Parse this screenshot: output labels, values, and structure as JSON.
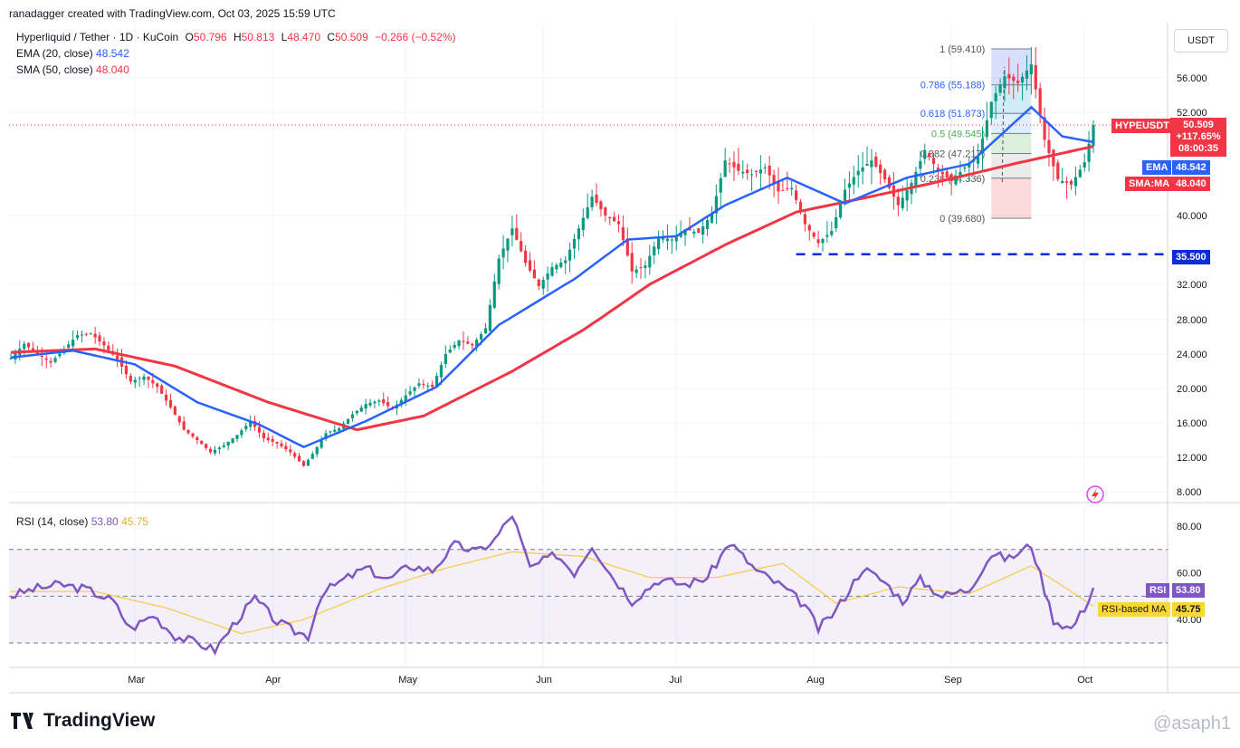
{
  "header": {
    "credit": "ranadagger created with TradingView.com, Oct 03, 2025 15:59 UTC",
    "pair": "Hyperliquid / Tether · 1D · KuCoin",
    "o_label": "O",
    "o": "50.796",
    "h_label": "H",
    "h": "50.813",
    "l_label": "L",
    "l": "48.470",
    "c_label": "C",
    "c": "50.509",
    "change": "−0.266 (−0.52%)",
    "ema_label": "EMA (20, close)",
    "ema_value": "48.542",
    "sma_label": "SMA (50, close)",
    "sma_value": "48.040",
    "rsi_label": "RSI (14, close)",
    "rsi_value": "53.80",
    "rsi_ma_value": "45.75"
  },
  "currency_button": "USDT",
  "price_box": {
    "symbol": "HYPEUSDT",
    "price": "50.509",
    "change": "+117.65%",
    "countdown": "08:00:35"
  },
  "axis_tags": {
    "ema": {
      "label": "EMA",
      "value": "48.542"
    },
    "sma": {
      "label": "SMA:MA",
      "value": "48.040"
    },
    "support": "35.500",
    "rsi": {
      "label": "RSI",
      "value": "53.80"
    },
    "rsi_ma": {
      "label": "RSI-based MA",
      "value": "45.75"
    }
  },
  "brand": "TradingView",
  "watermark": "@asaph1",
  "colors": {
    "up": "#089981",
    "down": "#f23645",
    "ema": "#2962ff",
    "sma": "#f23645",
    "rsi": "#7e57c2",
    "rsi_ma": "#f7c948",
    "support": "#0d2bd6"
  },
  "chart_data": [
    {
      "type": "candlestick",
      "y_ticks": [
        8,
        12,
        16,
        20,
        24,
        28,
        32,
        40,
        52,
        56
      ],
      "y_tick_labels": [
        "8.000",
        "12.000",
        "16.000",
        "20.000",
        "24.000",
        "28.000",
        "32.000",
        "40.000",
        "52.000",
        "56.000"
      ],
      "x_tick_labels": [
        "Mar",
        "Apr",
        "May",
        "Jun",
        "Jul",
        "Aug",
        "Sep",
        "Oct"
      ],
      "x_tick_dates": [
        "2025-03-01",
        "2025-04-01",
        "2025-05-01",
        "2025-06-01",
        "2025-07-01",
        "2025-08-01",
        "2025-09-01",
        "2025-10-01"
      ],
      "date_range": [
        "2025-02-01",
        "2025-10-03"
      ],
      "support_line": {
        "value": 35.5,
        "from": "2025-07-28",
        "to": "2025-10-03"
      },
      "fibonacci": {
        "from": "2025-09-10",
        "to": "2025-09-19",
        "levels": [
          {
            "ratio": "1",
            "value": 59.41,
            "label": "1 (59.410)"
          },
          {
            "ratio": "0.786",
            "value": 55.188,
            "label": "0.786 (55.188)"
          },
          {
            "ratio": "0.618",
            "value": 51.873,
            "label": "0.618 (51.873)"
          },
          {
            "ratio": "0.5",
            "value": 49.545,
            "label": "0.5 (49.545)"
          },
          {
            "ratio": "0.382",
            "value": 47.217,
            "label": "0.382 (47.217)"
          },
          {
            "ratio": "0.236",
            "value": 44.336,
            "label": "0.236 (44.336)"
          },
          {
            "ratio": "0",
            "value": 39.68,
            "label": "0 (39.680)"
          }
        ]
      },
      "closes": [
        {
          "d": "2025-02-01",
          "v": 23.5
        },
        {
          "d": "2025-02-04",
          "v": 25.2
        },
        {
          "d": "2025-02-07",
          "v": 24.0
        },
        {
          "d": "2025-02-10",
          "v": 23.0
        },
        {
          "d": "2025-02-13",
          "v": 24.6
        },
        {
          "d": "2025-02-16",
          "v": 26.2
        },
        {
          "d": "2025-02-19",
          "v": 26.4
        },
        {
          "d": "2025-02-22",
          "v": 25.0
        },
        {
          "d": "2025-02-25",
          "v": 23.4
        },
        {
          "d": "2025-02-28",
          "v": 20.8
        },
        {
          "d": "2025-03-03",
          "v": 21.4
        },
        {
          "d": "2025-03-06",
          "v": 20.2
        },
        {
          "d": "2025-03-09",
          "v": 17.8
        },
        {
          "d": "2025-03-12",
          "v": 15.2
        },
        {
          "d": "2025-03-15",
          "v": 14.0
        },
        {
          "d": "2025-03-18",
          "v": 12.6
        },
        {
          "d": "2025-03-21",
          "v": 13.4
        },
        {
          "d": "2025-03-24",
          "v": 14.6
        },
        {
          "d": "2025-03-27",
          "v": 16.2
        },
        {
          "d": "2025-03-30",
          "v": 14.2
        },
        {
          "d": "2025-04-02",
          "v": 13.6
        },
        {
          "d": "2025-04-05",
          "v": 12.6
        },
        {
          "d": "2025-04-08",
          "v": 11.0
        },
        {
          "d": "2025-04-10",
          "v": 12.4
        },
        {
          "d": "2025-04-13",
          "v": 14.8
        },
        {
          "d": "2025-04-16",
          "v": 15.4
        },
        {
          "d": "2025-04-19",
          "v": 17.0
        },
        {
          "d": "2025-04-22",
          "v": 18.2
        },
        {
          "d": "2025-04-25",
          "v": 18.6
        },
        {
          "d": "2025-04-28",
          "v": 17.6
        },
        {
          "d": "2025-05-01",
          "v": 19.2
        },
        {
          "d": "2025-05-04",
          "v": 20.6
        },
        {
          "d": "2025-05-07",
          "v": 20.2
        },
        {
          "d": "2025-05-10",
          "v": 24.0
        },
        {
          "d": "2025-05-13",
          "v": 25.6
        },
        {
          "d": "2025-05-16",
          "v": 25.0
        },
        {
          "d": "2025-05-19",
          "v": 27.0
        },
        {
          "d": "2025-05-22",
          "v": 35.0
        },
        {
          "d": "2025-05-25",
          "v": 38.5
        },
        {
          "d": "2025-05-28",
          "v": 34.5
        },
        {
          "d": "2025-05-31",
          "v": 31.8
        },
        {
          "d": "2025-06-03",
          "v": 34.0
        },
        {
          "d": "2025-06-06",
          "v": 34.8
        },
        {
          "d": "2025-06-09",
          "v": 38.5
        },
        {
          "d": "2025-06-12",
          "v": 42.2
        },
        {
          "d": "2025-06-15",
          "v": 40.0
        },
        {
          "d": "2025-06-18",
          "v": 39.0
        },
        {
          "d": "2025-06-21",
          "v": 33.5
        },
        {
          "d": "2025-06-24",
          "v": 34.2
        },
        {
          "d": "2025-06-27",
          "v": 37.5
        },
        {
          "d": "2025-06-30",
          "v": 37.2
        },
        {
          "d": "2025-07-03",
          "v": 38.4
        },
        {
          "d": "2025-07-06",
          "v": 38.0
        },
        {
          "d": "2025-07-09",
          "v": 40.2
        },
        {
          "d": "2025-07-12",
          "v": 46.4
        },
        {
          "d": "2025-07-15",
          "v": 45.2
        },
        {
          "d": "2025-07-18",
          "v": 44.8
        },
        {
          "d": "2025-07-21",
          "v": 45.6
        },
        {
          "d": "2025-07-24",
          "v": 42.8
        },
        {
          "d": "2025-07-27",
          "v": 43.2
        },
        {
          "d": "2025-07-30",
          "v": 39.0
        },
        {
          "d": "2025-08-02",
          "v": 36.8
        },
        {
          "d": "2025-08-05",
          "v": 38.2
        },
        {
          "d": "2025-08-08",
          "v": 43.0
        },
        {
          "d": "2025-08-11",
          "v": 45.2
        },
        {
          "d": "2025-08-14",
          "v": 46.4
        },
        {
          "d": "2025-08-17",
          "v": 44.2
        },
        {
          "d": "2025-08-20",
          "v": 41.2
        },
        {
          "d": "2025-08-23",
          "v": 43.8
        },
        {
          "d": "2025-08-26",
          "v": 47.6
        },
        {
          "d": "2025-08-29",
          "v": 45.2
        },
        {
          "d": "2025-09-01",
          "v": 44.0
        },
        {
          "d": "2025-09-04",
          "v": 45.6
        },
        {
          "d": "2025-09-07",
          "v": 46.8
        },
        {
          "d": "2025-09-10",
          "v": 53.2
        },
        {
          "d": "2025-09-13",
          "v": 56.2
        },
        {
          "d": "2025-09-16",
          "v": 55.4
        },
        {
          "d": "2025-09-19",
          "v": 57.6
        },
        {
          "d": "2025-09-22",
          "v": 48.8
        },
        {
          "d": "2025-09-25",
          "v": 44.2
        },
        {
          "d": "2025-09-28",
          "v": 43.6
        },
        {
          "d": "2025-10-01",
          "v": 46.2
        },
        {
          "d": "2025-10-03",
          "v": 50.509
        }
      ],
      "ema20": [
        {
          "d": "2025-02-01",
          "v": 23.6
        },
        {
          "d": "2025-02-15",
          "v": 24.4
        },
        {
          "d": "2025-03-01",
          "v": 22.8
        },
        {
          "d": "2025-03-15",
          "v": 18.4
        },
        {
          "d": "2025-03-29",
          "v": 15.8
        },
        {
          "d": "2025-04-08",
          "v": 13.2
        },
        {
          "d": "2025-04-22",
          "v": 16.2
        },
        {
          "d": "2025-05-08",
          "v": 20.2
        },
        {
          "d": "2025-05-22",
          "v": 27.4
        },
        {
          "d": "2025-06-08",
          "v": 32.6
        },
        {
          "d": "2025-06-20",
          "v": 37.2
        },
        {
          "d": "2025-07-01",
          "v": 37.6
        },
        {
          "d": "2025-07-12",
          "v": 41.2
        },
        {
          "d": "2025-07-26",
          "v": 44.4
        },
        {
          "d": "2025-08-08",
          "v": 41.4
        },
        {
          "d": "2025-08-22",
          "v": 44.4
        },
        {
          "d": "2025-09-05",
          "v": 46.0
        },
        {
          "d": "2025-09-19",
          "v": 52.6
        },
        {
          "d": "2025-09-26",
          "v": 49.2
        },
        {
          "d": "2025-10-03",
          "v": 48.542
        }
      ],
      "sma50": [
        {
          "d": "2025-02-01",
          "v": 24.2
        },
        {
          "d": "2025-02-20",
          "v": 24.6
        },
        {
          "d": "2025-03-10",
          "v": 22.6
        },
        {
          "d": "2025-03-31",
          "v": 18.4
        },
        {
          "d": "2025-04-20",
          "v": 15.2
        },
        {
          "d": "2025-05-05",
          "v": 16.8
        },
        {
          "d": "2025-05-25",
          "v": 22.0
        },
        {
          "d": "2025-06-10",
          "v": 26.8
        },
        {
          "d": "2025-06-25",
          "v": 32.0
        },
        {
          "d": "2025-07-12",
          "v": 36.6
        },
        {
          "d": "2025-07-28",
          "v": 40.4
        },
        {
          "d": "2025-08-12",
          "v": 42.0
        },
        {
          "d": "2025-08-28",
          "v": 43.8
        },
        {
          "d": "2025-09-15",
          "v": 46.0
        },
        {
          "d": "2025-10-03",
          "v": 48.04
        }
      ]
    },
    {
      "type": "line",
      "series": [
        {
          "name": "RSI",
          "values_ref": "rsi"
        },
        {
          "name": "RSI-based MA",
          "values_ref": "rsi_ma"
        }
      ],
      "y_ticks": [
        40,
        60,
        80
      ],
      "y_tick_labels": [
        "40.00",
        "60.00",
        "80.00"
      ],
      "bands": [
        30,
        50,
        70
      ],
      "rsi": [
        {
          "d": "2025-02-01",
          "v": 50
        },
        {
          "d": "2025-02-06",
          "v": 53
        },
        {
          "d": "2025-02-12",
          "v": 55
        },
        {
          "d": "2025-02-18",
          "v": 53
        },
        {
          "d": "2025-02-24",
          "v": 48
        },
        {
          "d": "2025-02-28",
          "v": 36
        },
        {
          "d": "2025-03-05",
          "v": 42
        },
        {
          "d": "2025-03-10",
          "v": 33
        },
        {
          "d": "2025-03-15",
          "v": 30
        },
        {
          "d": "2025-03-19",
          "v": 27
        },
        {
          "d": "2025-03-24",
          "v": 40
        },
        {
          "d": "2025-03-28",
          "v": 49
        },
        {
          "d": "2025-04-02",
          "v": 39
        },
        {
          "d": "2025-04-06",
          "v": 35
        },
        {
          "d": "2025-04-09",
          "v": 33
        },
        {
          "d": "2025-04-12",
          "v": 51
        },
        {
          "d": "2025-04-17",
          "v": 57
        },
        {
          "d": "2025-04-22",
          "v": 62
        },
        {
          "d": "2025-04-27",
          "v": 57
        },
        {
          "d": "2025-05-02",
          "v": 63
        },
        {
          "d": "2025-05-07",
          "v": 61
        },
        {
          "d": "2025-05-12",
          "v": 72
        },
        {
          "d": "2025-05-17",
          "v": 69
        },
        {
          "d": "2025-05-21",
          "v": 74
        },
        {
          "d": "2025-05-25",
          "v": 85
        },
        {
          "d": "2025-05-29",
          "v": 62
        },
        {
          "d": "2025-06-04",
          "v": 68
        },
        {
          "d": "2025-06-08",
          "v": 60
        },
        {
          "d": "2025-06-12",
          "v": 72
        },
        {
          "d": "2025-06-16",
          "v": 60
        },
        {
          "d": "2025-06-21",
          "v": 48
        },
        {
          "d": "2025-06-27",
          "v": 57
        },
        {
          "d": "2025-07-03",
          "v": 55
        },
        {
          "d": "2025-07-08",
          "v": 58
        },
        {
          "d": "2025-07-13",
          "v": 73
        },
        {
          "d": "2025-07-19",
          "v": 61
        },
        {
          "d": "2025-07-25",
          "v": 54
        },
        {
          "d": "2025-07-30",
          "v": 46
        },
        {
          "d": "2025-08-02",
          "v": 36
        },
        {
          "d": "2025-08-06",
          "v": 44
        },
        {
          "d": "2025-08-12",
          "v": 62
        },
        {
          "d": "2025-08-17",
          "v": 56
        },
        {
          "d": "2025-08-21",
          "v": 48
        },
        {
          "d": "2025-08-25",
          "v": 57
        },
        {
          "d": "2025-08-30",
          "v": 50
        },
        {
          "d": "2025-09-05",
          "v": 53
        },
        {
          "d": "2025-09-10",
          "v": 68
        },
        {
          "d": "2025-09-14",
          "v": 66
        },
        {
          "d": "2025-09-19",
          "v": 72
        },
        {
          "d": "2025-09-24",
          "v": 40
        },
        {
          "d": "2025-09-28",
          "v": 36
        },
        {
          "d": "2025-10-01",
          "v": 45
        },
        {
          "d": "2025-10-03",
          "v": 53.8
        }
      ],
      "rsi_ma": [
        {
          "d": "2025-02-01",
          "v": 52
        },
        {
          "d": "2025-02-20",
          "v": 52
        },
        {
          "d": "2025-03-08",
          "v": 45
        },
        {
          "d": "2025-03-25",
          "v": 34
        },
        {
          "d": "2025-04-08",
          "v": 40
        },
        {
          "d": "2025-04-25",
          "v": 53
        },
        {
          "d": "2025-05-10",
          "v": 62
        },
        {
          "d": "2025-05-25",
          "v": 69
        },
        {
          "d": "2025-06-10",
          "v": 67
        },
        {
          "d": "2025-06-25",
          "v": 58
        },
        {
          "d": "2025-07-10",
          "v": 58
        },
        {
          "d": "2025-07-25",
          "v": 64
        },
        {
          "d": "2025-08-06",
          "v": 47
        },
        {
          "d": "2025-08-20",
          "v": 54
        },
        {
          "d": "2025-09-05",
          "v": 51
        },
        {
          "d": "2025-09-19",
          "v": 63
        },
        {
          "d": "2025-09-28",
          "v": 52
        },
        {
          "d": "2025-10-03",
          "v": 45.75
        }
      ]
    }
  ]
}
